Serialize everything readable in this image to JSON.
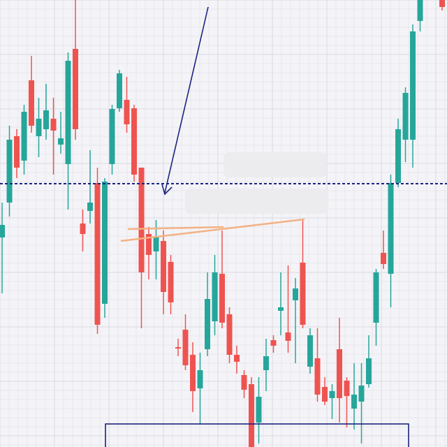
{
  "chart_data": {
    "type": "candlestick",
    "grid": true,
    "up_color": "#26a69a",
    "down_color": "#ef5350",
    "ylim": [
      0,
      640
    ],
    "hline": {
      "value": 377,
      "color": "#1a237e"
    },
    "open": [
      300,
      350,
      445,
      410,
      525,
      445,
      455,
      470,
      433,
      405,
      570,
      320,
      338,
      378,
      205,
      405,
      485,
      497,
      485,
      400,
      305,
      280,
      295,
      265,
      143,
      168,
      132,
      84,
      140,
      180,
      248,
      190,
      132,
      103,
      90,
      35,
      110,
      153,
      195,
      164,
      210,
      264,
      115,
      127,
      86,
      70,
      140,
      95,
      55,
      65,
      90,
      178,
      278,
      248,
      378,
      440,
      440,
      610,
      null,
      null,
      640
    ],
    "high": [
      350,
      460,
      455,
      490,
      560,
      500,
      520,
      500,
      480,
      565,
      640,
      340,
      425,
      400,
      385,
      490,
      540,
      530,
      490,
      400,
      315,
      325,
      310,
      275,
      155,
      190,
      150,
      135,
      250,
      275,
      310,
      200,
      145,
      110,
      100,
      100,
      155,
      160,
      250,
      260,
      242,
      325,
      170,
      170,
      100,
      90,
      185,
      100,
      120,
      120,
      160,
      255,
      310,
      390,
      470,
      515,
      605,
      640,
      null,
      null,
      640
    ],
    "low": [
      220,
      330,
      385,
      390,
      450,
      415,
      440,
      390,
      420,
      340,
      440,
      280,
      320,
      162,
      185,
      390,
      480,
      450,
      380,
      170,
      240,
      240,
      190,
      190,
      130,
      110,
      50,
      32,
      130,
      160,
      170,
      120,
      105,
      70,
      0,
      5,
      80,
      135,
      160,
      135,
      120,
      170,
      105,
      65,
      60,
      40,
      35,
      28,
      25,
      5,
      85,
      145,
      255,
      200,
      372,
      408,
      400,
      595,
      null,
      null,
      625
    ],
    "close": [
      318,
      440,
      400,
      480,
      460,
      470,
      482,
      453,
      442,
      553,
      455,
      305,
      350,
      175,
      380,
      484,
      535,
      462,
      390,
      250,
      275,
      302,
      222,
      207,
      141,
      117,
      80,
      110,
      212,
      250,
      178,
      132,
      122,
      82,
      0,
      72,
      130,
      145,
      200,
      152,
      227,
      175,
      160,
      75,
      65,
      80,
      70,
      73,
      75,
      88,
      127,
      250,
      262,
      378,
      455,
      507,
      595,
      640,
      null,
      null,
      630
    ]
  }
}
